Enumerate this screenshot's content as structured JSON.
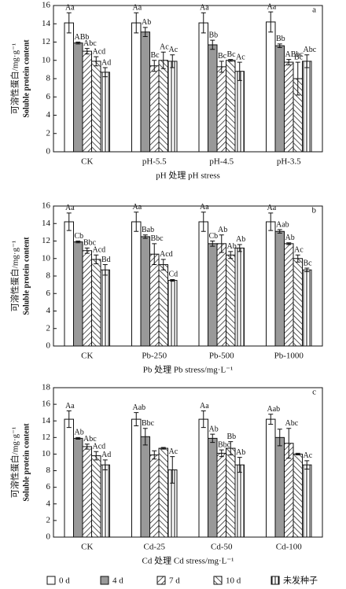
{
  "legend": [
    {
      "name": "0 d",
      "fill": "white"
    },
    {
      "name": "4 d",
      "fill": "gray"
    },
    {
      "name": "7 d",
      "fill": "hatch-forward"
    },
    {
      "name": "10 d",
      "fill": "hatch-back"
    },
    {
      "name": "未发种子",
      "fill": "vertical"
    }
  ],
  "chart_data": [
    {
      "type": "bar",
      "panel": "a",
      "ylabel": [
        "可溶性蛋白/mg·g⁻¹",
        "Soluble protein content"
      ],
      "xlabel": "pH 处理 pH stress",
      "categories": [
        "CK",
        "pH-5.5",
        "pH-4.5",
        "pH-3.5"
      ],
      "ylim": [
        0,
        16
      ],
      "yticks": [
        0,
        2,
        4,
        6,
        8,
        10,
        12,
        14,
        16
      ],
      "series": [
        {
          "values": [
            14.1,
            14.1,
            14.1,
            14.2
          ],
          "errors": [
            1.1,
            1.1,
            1.1,
            1.1
          ],
          "labels": [
            "Aa",
            "Aa",
            "Aa",
            "Aa"
          ]
        },
        {
          "values": [
            11.9,
            13.1,
            11.7,
            11.6
          ],
          "errors": [
            0.1,
            0.5,
            0.5,
            0.2
          ],
          "labels": [
            "ABb",
            "Ab",
            "Bb",
            "Bb"
          ]
        },
        {
          "values": [
            11.0,
            9.4,
            9.3,
            9.8
          ],
          "errors": [
            0.3,
            0.6,
            0.6,
            0.3
          ],
          "labels": [
            "Abc",
            "Bc",
            "Bc",
            "ABbc"
          ]
        },
        {
          "values": [
            9.9,
            10.0,
            10.0,
            8.0
          ],
          "errors": [
            0.5,
            0.9,
            0.1,
            1.8
          ],
          "labels": [
            "Acd",
            "Ac",
            "Bc",
            "Bc"
          ]
        },
        {
          "values": [
            8.7,
            9.9,
            8.8,
            9.9
          ],
          "errors": [
            0.5,
            0.7,
            1.0,
            0.7
          ],
          "labels": [
            "Ad",
            "Ac",
            "Ac",
            "Abc"
          ]
        }
      ]
    },
    {
      "type": "bar",
      "panel": "b",
      "ylabel": [
        "可溶性蛋白/mg·g⁻¹",
        "Soluble protein content"
      ],
      "xlabel": "Pb 处理 Pb stress/mg·L⁻¹",
      "categories": [
        "CK",
        "Pb-250",
        "Pb-500",
        "Pb-1000"
      ],
      "ylim": [
        0,
        16
      ],
      "yticks": [
        0,
        2,
        4,
        6,
        8,
        10,
        12,
        14,
        16
      ],
      "series": [
        {
          "values": [
            14.2,
            14.2,
            14.2,
            14.2
          ],
          "errors": [
            1.0,
            1.1,
            1.1,
            1.0
          ],
          "labels": [
            "Aa",
            "Aa",
            "Aa",
            "Aa"
          ]
        },
        {
          "values": [
            11.9,
            12.5,
            11.7,
            13.1
          ],
          "errors": [
            0.1,
            0.2,
            0.3,
            0.2
          ],
          "labels": [
            "Cb",
            "Bab",
            "Cb",
            "Aab"
          ]
        },
        {
          "values": [
            10.9,
            10.5,
            11.7,
            11.7
          ],
          "errors": [
            0.3,
            1.2,
            1.0,
            0.1
          ],
          "labels": [
            "Bbc",
            "Bbc",
            "Ab",
            "Ab"
          ]
        },
        {
          "values": [
            9.9,
            9.3,
            10.4,
            10.0
          ],
          "errors": [
            0.5,
            0.6,
            0.4,
            0.4
          ],
          "labels": [
            "Acd",
            "Acd",
            "Ab",
            "Ac"
          ]
        },
        {
          "values": [
            8.7,
            7.5,
            11.2,
            8.7
          ],
          "errors": [
            0.6,
            0.1,
            0.4,
            0.2
          ],
          "labels": [
            "Bd",
            "Cd",
            "Ab",
            "Bc"
          ]
        }
      ]
    },
    {
      "type": "bar",
      "panel": "c",
      "ylabel": [
        "可溶性蛋白/mg·g⁻¹",
        "Soluble protein content"
      ],
      "xlabel": "Cd 处理 Cd stress/mg·L⁻¹",
      "categories": [
        "CK",
        "Cd-25",
        "Cd-50",
        "Cd-100"
      ],
      "ylim": [
        0,
        18
      ],
      "yticks": [
        0,
        2,
        4,
        6,
        8,
        10,
        12,
        14,
        16,
        18
      ],
      "series": [
        {
          "values": [
            14.2,
            14.2,
            14.2,
            14.2
          ],
          "errors": [
            1.0,
            0.8,
            1.0,
            0.6
          ],
          "labels": [
            "Aa",
            "Aab",
            "Aa",
            "Aab"
          ]
        },
        {
          "values": [
            11.9,
            12.1,
            11.9,
            12.0
          ],
          "errors": [
            0.1,
            1.0,
            0.5,
            1.0
          ],
          "labels": [
            "Ab",
            "Bbc",
            "Ab",
            null
          ]
        },
        {
          "values": [
            10.9,
            9.9,
            10.1,
            11.3
          ],
          "errors": [
            0.3,
            0.5,
            0.4,
            1.8
          ],
          "labels": [
            "Abc",
            null,
            "Bbc",
            "Abc"
          ]
        },
        {
          "values": [
            9.8,
            10.7,
            10.7,
            10.0
          ],
          "errors": [
            0.5,
            0.1,
            0.8,
            0.1
          ],
          "labels": [
            "Acd",
            null,
            "Bb",
            null
          ]
        },
        {
          "values": [
            8.7,
            8.1,
            8.7,
            8.7
          ],
          "errors": [
            0.6,
            1.6,
            0.9,
            0.5
          ],
          "labels": [
            "Ad",
            "Ac",
            "Ab",
            "Ac"
          ]
        }
      ]
    }
  ]
}
